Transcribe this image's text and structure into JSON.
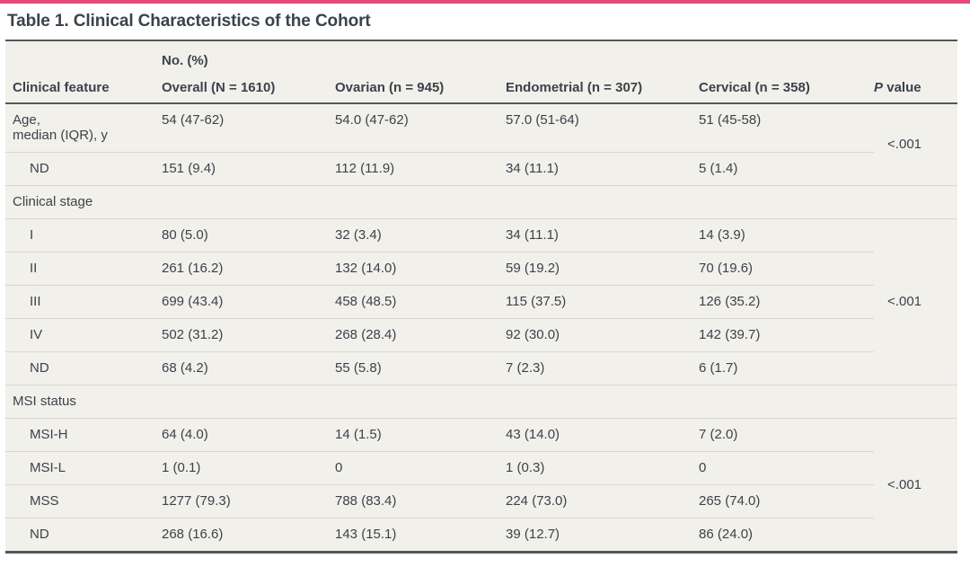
{
  "colors": {
    "accent": "#EE4779",
    "rule": "#53565A",
    "divider": "#D9D7D0",
    "table_bg": "#F2F0EA",
    "text": "#3B424C",
    "page_bg": "#FFFFFF"
  },
  "title": "Table 1. Clinical Characteristics of the Cohort",
  "table": {
    "group_header": "No. (%)",
    "columns": [
      {
        "label": "Clinical feature",
        "group": false
      },
      {
        "label": "Overall (N = 1610)",
        "group": true
      },
      {
        "label": "Ovarian (n = 945)",
        "group": true
      },
      {
        "label": "Endometrial (n = 307)",
        "group": true
      },
      {
        "label": "Cervical (n = 358)",
        "group": true
      },
      {
        "label": "P value",
        "group": false,
        "italic_first": true
      }
    ],
    "sections": [
      {
        "header": null,
        "p_value": "<.001",
        "rows": [
          {
            "label": "Age,\nmedian (IQR), y",
            "indent": false,
            "values": [
              "54 (47-62)",
              "54.0 (47-62)",
              "57.0 (51-64)",
              "51 (45-58)"
            ]
          },
          {
            "label": "ND",
            "indent": true,
            "values": [
              "151 (9.4)",
              "112 (11.9)",
              "34 (11.1)",
              "5 (1.4)"
            ]
          }
        ]
      },
      {
        "header": "Clinical stage",
        "p_value": "<.001",
        "rows": [
          {
            "label": "I",
            "indent": true,
            "values": [
              "80 (5.0)",
              "32 (3.4)",
              "34 (11.1)",
              "14 (3.9)"
            ]
          },
          {
            "label": "II",
            "indent": true,
            "values": [
              "261 (16.2)",
              "132 (14.0)",
              "59 (19.2)",
              "70 (19.6)"
            ]
          },
          {
            "label": "III",
            "indent": true,
            "values": [
              "699 (43.4)",
              "458 (48.5)",
              "115 (37.5)",
              "126 (35.2)"
            ]
          },
          {
            "label": "IV",
            "indent": true,
            "values": [
              "502 (31.2)",
              "268 (28.4)",
              "92 (30.0)",
              "142 (39.7)"
            ]
          },
          {
            "label": "ND",
            "indent": true,
            "values": [
              "68 (4.2)",
              "55 (5.8)",
              "7 (2.3)",
              "6 (1.7)"
            ]
          }
        ]
      },
      {
        "header": "MSI status",
        "p_value": "<.001",
        "rows": [
          {
            "label": "MSI-H",
            "indent": true,
            "values": [
              "64 (4.0)",
              "14 (1.5)",
              "43 (14.0)",
              "7 (2.0)"
            ]
          },
          {
            "label": "MSI-L",
            "indent": true,
            "values": [
              "1 (0.1)",
              "0",
              "1 (0.3)",
              "0"
            ]
          },
          {
            "label": "MSS",
            "indent": true,
            "values": [
              "1277 (79.3)",
              "788 (83.4)",
              "224 (73.0)",
              "265 (74.0)"
            ]
          },
          {
            "label": "ND",
            "indent": true,
            "values": [
              "268 (16.6)",
              "143 (15.1)",
              "39 (12.7)",
              "86 (24.0)"
            ]
          }
        ]
      }
    ]
  }
}
